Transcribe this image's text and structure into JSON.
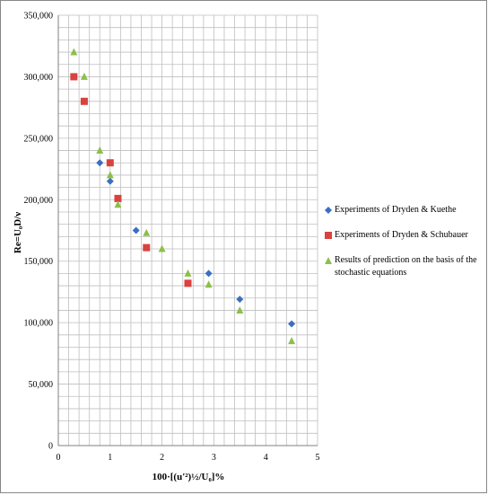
{
  "chart_data": {
    "type": "scatter",
    "title": "",
    "xlabel": "100·[(u'²)½/U₀]%",
    "ylabel": "Re=U₀D/ν",
    "xlim": [
      0,
      5
    ],
    "ylim": [
      0,
      350000
    ],
    "x_ticks": [
      "0",
      "1",
      "2",
      "3",
      "4",
      "5"
    ],
    "y_ticks": [
      "0",
      "50,000",
      "100,000",
      "150,000",
      "200,000",
      "250,000",
      "300,000",
      "350,000"
    ],
    "grid": true,
    "legend_position": "right",
    "series": [
      {
        "name": "Experiments of Dryden & Kuethe",
        "marker": "diamond",
        "color": "#3B6FC2",
        "points": [
          [
            0.8,
            230000
          ],
          [
            1.0,
            215000
          ],
          [
            1.5,
            175000
          ],
          [
            2.9,
            140000
          ],
          [
            3.5,
            119000
          ],
          [
            4.5,
            99000
          ]
        ]
      },
      {
        "name": "Experiments of Dryden & Schubauer",
        "marker": "square",
        "color": "#D9423E",
        "points": [
          [
            0.3,
            300000
          ],
          [
            0.5,
            280000
          ],
          [
            1.0,
            230000
          ],
          [
            1.15,
            201000
          ],
          [
            1.7,
            161000
          ],
          [
            2.5,
            132000
          ]
        ]
      },
      {
        "name": "Results of prediction on the basis of  the stochastic equations",
        "marker": "triangle",
        "color": "#8DBF4A",
        "points": [
          [
            0.3,
            320000
          ],
          [
            0.5,
            300000
          ],
          [
            0.8,
            240000
          ],
          [
            1.0,
            220000
          ],
          [
            1.15,
            196000
          ],
          [
            1.7,
            173000
          ],
          [
            2.0,
            160000
          ],
          [
            2.5,
            140000
          ],
          [
            2.9,
            131000
          ],
          [
            3.5,
            110000
          ],
          [
            4.5,
            85000
          ]
        ]
      }
    ]
  }
}
